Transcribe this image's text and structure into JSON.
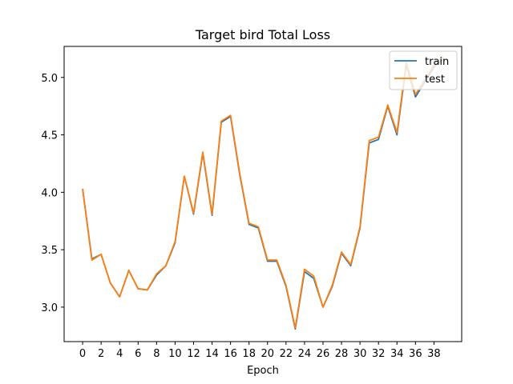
{
  "chart_data": {
    "type": "line",
    "title": "Target bird Total Loss",
    "xlabel": "Epoch",
    "ylabel": "",
    "xlim": [
      -2,
      41
    ],
    "ylim": [
      2.7,
      5.27
    ],
    "xticks": [
      0,
      2,
      4,
      6,
      8,
      10,
      12,
      14,
      16,
      18,
      20,
      22,
      24,
      26,
      28,
      30,
      32,
      34,
      36,
      38
    ],
    "yticks": [
      3.0,
      3.5,
      4.0,
      4.5,
      5.0
    ],
    "grid": false,
    "legend_position": "top-right",
    "x": [
      0,
      1,
      2,
      3,
      4,
      5,
      6,
      7,
      8,
      9,
      10,
      11,
      12,
      13,
      14,
      15,
      16,
      17,
      18,
      19,
      20,
      21,
      22,
      23,
      24,
      25,
      26,
      27,
      28,
      29,
      30,
      31,
      32,
      33,
      34,
      35,
      36,
      37,
      38,
      39
    ],
    "series": [
      {
        "name": "train",
        "color": "#1f77b4",
        "values": [
          4.03,
          3.42,
          3.46,
          3.21,
          3.09,
          3.32,
          3.16,
          3.15,
          3.28,
          3.36,
          3.56,
          4.14,
          3.81,
          4.34,
          3.8,
          4.61,
          4.66,
          4.15,
          3.72,
          3.69,
          3.4,
          3.4,
          3.18,
          2.81,
          3.31,
          3.25,
          3.0,
          3.18,
          3.47,
          3.36,
          3.69,
          4.43,
          4.46,
          4.75,
          4.5,
          5.11,
          4.83,
          4.96,
          5.09,
          5.16
        ]
      },
      {
        "name": "test",
        "color": "#ff7f0e",
        "values": [
          4.03,
          3.41,
          3.46,
          3.21,
          3.09,
          3.32,
          3.16,
          3.15,
          3.29,
          3.36,
          3.57,
          4.14,
          3.82,
          4.35,
          3.81,
          4.62,
          4.67,
          4.16,
          3.73,
          3.7,
          3.41,
          3.41,
          3.19,
          2.82,
          3.33,
          3.27,
          3.0,
          3.19,
          3.48,
          3.37,
          3.7,
          4.45,
          4.48,
          4.76,
          4.52,
          5.13,
          4.85,
          4.98,
          5.11,
          5.18
        ]
      }
    ]
  }
}
